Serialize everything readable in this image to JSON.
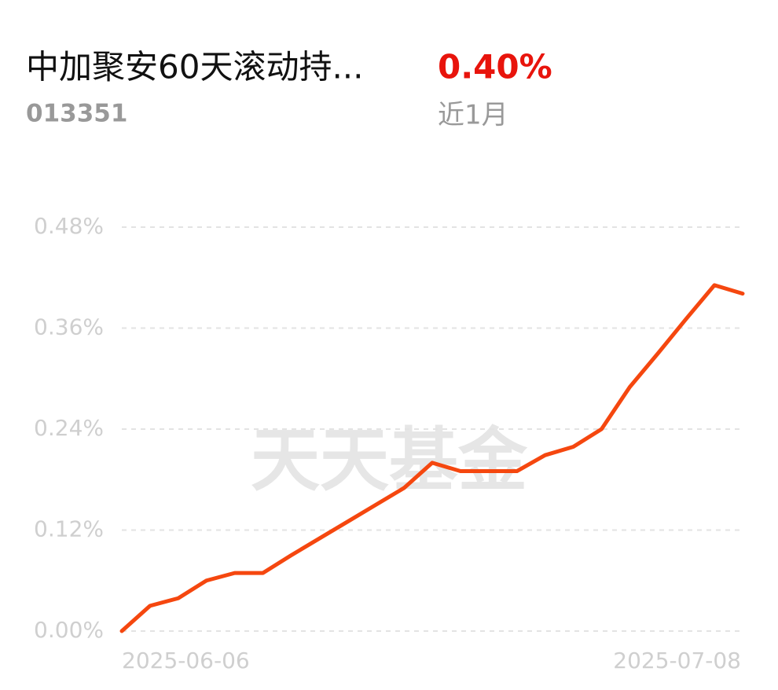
{
  "header": {
    "title": "中加聚安60天滚动持...",
    "code": "013351",
    "change": "0.40%",
    "period": "近1月"
  },
  "chart_data": {
    "type": "line",
    "watermark": "天天基金",
    "categories": [
      "2025-06-06",
      null,
      null,
      null,
      null,
      null,
      null,
      null,
      null,
      null,
      null,
      null,
      null,
      null,
      null,
      null,
      null,
      null,
      null,
      null,
      null,
      null,
      "2025-07-08"
    ],
    "values": [
      0.0,
      0.03,
      0.039,
      0.06,
      0.069,
      0.069,
      0.09,
      0.11,
      0.13,
      0.15,
      0.17,
      0.2,
      0.19,
      0.19,
      0.19,
      0.209,
      0.219,
      0.24,
      0.29,
      0.33,
      0.371,
      0.411,
      0.401
    ],
    "color": "#f5470f",
    "ylim": [
      0,
      0.48
    ],
    "yticks": [
      {
        "value": 0,
        "label": "0.00%"
      },
      {
        "value": 0.12,
        "label": "0.12%"
      },
      {
        "value": 0.24,
        "label": "0.24%"
      },
      {
        "value": 0.36,
        "label": "0.36%"
      },
      {
        "value": 0.48,
        "label": "0.48%"
      }
    ],
    "grid": true
  }
}
